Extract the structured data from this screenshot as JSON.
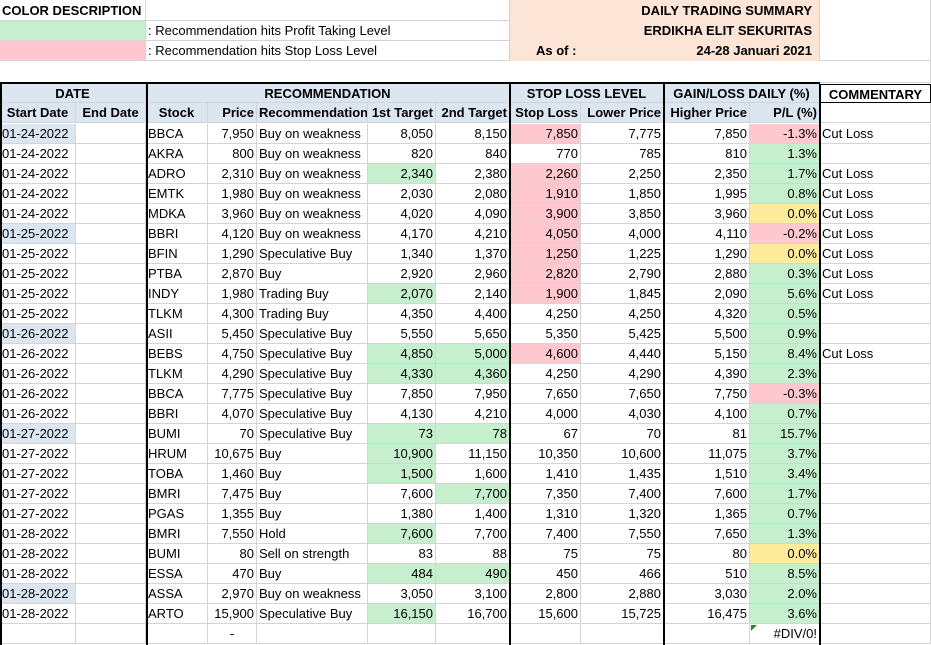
{
  "legend": {
    "title": "COLOR DESCRIPTION",
    "profit_label": ": Recommendation hits Profit Taking Level",
    "stoploss_label": ": Recommendation hits Stop Loss Level"
  },
  "summary": {
    "title": "DAILY TRADING SUMMARY",
    "company": "ERDIKHA ELIT SEKURITAS",
    "as_of_label": "As of :",
    "period": "24-28 Januari 2021"
  },
  "groups": {
    "date": "DATE",
    "recommendation": "RECOMMENDATION",
    "stop_loss": "STOP LOSS LEVEL",
    "gain_loss": "GAIN/LOSS DAILY (%)",
    "commentary": "COMMENTARY"
  },
  "columns": [
    "Start Date",
    "End Date",
    "Stock",
    "Price",
    "Recommendation",
    "1st Target",
    "2nd Target",
    "Stop Loss",
    "Lower Price",
    "Higher Price",
    "P/L (%)"
  ],
  "rows": [
    {
      "start": "01-24-2022",
      "end": "",
      "stock": "BBCA",
      "price": "7,950",
      "rec": "Buy on weakness",
      "t1": "8,050",
      "t2": "8,150",
      "sl": "7,850",
      "low": "7,775",
      "high": "7,850",
      "pl": "-1.3%",
      "comment": "Cut Loss",
      "startBg": "blue",
      "t1Bg": "",
      "t2Bg": "",
      "slBg": "red",
      "plBg": "red"
    },
    {
      "start": "01-24-2022",
      "end": "",
      "stock": "AKRA",
      "price": "800",
      "rec": "Buy on weakness",
      "t1": "820",
      "t2": "840",
      "sl": "770",
      "low": "785",
      "high": "810",
      "pl": "1.3%",
      "comment": "",
      "startBg": "",
      "t1Bg": "",
      "t2Bg": "",
      "slBg": "",
      "plBg": "green"
    },
    {
      "start": "01-24-2022",
      "end": "",
      "stock": "ADRO",
      "price": "2,310",
      "rec": "Buy on weakness",
      "t1": "2,340",
      "t2": "2,380",
      "sl": "2,260",
      "low": "2,250",
      "high": "2,350",
      "pl": "1.7%",
      "comment": "Cut Loss",
      "startBg": "",
      "t1Bg": "green",
      "t2Bg": "",
      "slBg": "red",
      "plBg": "green"
    },
    {
      "start": "01-24-2022",
      "end": "",
      "stock": "EMTK",
      "price": "1,980",
      "rec": "Buy on weakness",
      "t1": "2,030",
      "t2": "2,080",
      "sl": "1,910",
      "low": "1,850",
      "high": "1,995",
      "pl": "0.8%",
      "comment": "Cut Loss",
      "startBg": "",
      "t1Bg": "",
      "t2Bg": "",
      "slBg": "red",
      "plBg": "green"
    },
    {
      "start": "01-24-2022",
      "end": "",
      "stock": "MDKA",
      "price": "3,960",
      "rec": "Buy on weakness",
      "t1": "4,020",
      "t2": "4,090",
      "sl": "3,900",
      "low": "3,850",
      "high": "3,960",
      "pl": "0.0%",
      "comment": "Cut Loss",
      "startBg": "",
      "t1Bg": "",
      "t2Bg": "",
      "slBg": "red",
      "plBg": "yellow"
    },
    {
      "start": "01-25-2022",
      "end": "",
      "stock": "BBRI",
      "price": "4,120",
      "rec": "Buy on weakness",
      "t1": "4,170",
      "t2": "4,210",
      "sl": "4,050",
      "low": "4,000",
      "high": "4,110",
      "pl": "-0.2%",
      "comment": "Cut Loss",
      "startBg": "blue",
      "t1Bg": "",
      "t2Bg": "",
      "slBg": "red",
      "plBg": "red"
    },
    {
      "start": "01-25-2022",
      "end": "",
      "stock": "BFIN",
      "price": "1,290",
      "rec": "Speculative Buy",
      "t1": "1,340",
      "t2": "1,370",
      "sl": "1,250",
      "low": "1,225",
      "high": "1,290",
      "pl": "0.0%",
      "comment": "Cut Loss",
      "startBg": "",
      "t1Bg": "",
      "t2Bg": "",
      "slBg": "red",
      "plBg": "yellow"
    },
    {
      "start": "01-25-2022",
      "end": "",
      "stock": "PTBA",
      "price": "2,870",
      "rec": "Buy",
      "t1": "2,920",
      "t2": "2,960",
      "sl": "2,820",
      "low": "2,790",
      "high": "2,880",
      "pl": "0.3%",
      "comment": "Cut Loss",
      "startBg": "",
      "t1Bg": "",
      "t2Bg": "",
      "slBg": "red",
      "plBg": "green"
    },
    {
      "start": "01-25-2022",
      "end": "",
      "stock": "INDY",
      "price": "1,980",
      "rec": "Trading Buy",
      "t1": "2,070",
      "t2": "2,140",
      "sl": "1,900",
      "low": "1,845",
      "high": "2,090",
      "pl": "5.6%",
      "comment": "Cut Loss",
      "startBg": "",
      "t1Bg": "green",
      "t2Bg": "",
      "slBg": "red",
      "plBg": "green"
    },
    {
      "start": "01-25-2022",
      "end": "",
      "stock": "TLKM",
      "price": "4,300",
      "rec": "Trading Buy",
      "t1": "4,350",
      "t2": "4,400",
      "sl": "4,250",
      "low": "4,250",
      "high": "4,320",
      "pl": "0.5%",
      "comment": "",
      "startBg": "",
      "t1Bg": "",
      "t2Bg": "",
      "slBg": "",
      "plBg": "green"
    },
    {
      "start": "01-26-2022",
      "end": "",
      "stock": "ASII",
      "price": "5,450",
      "rec": "Speculative Buy",
      "t1": "5,550",
      "t2": "5,650",
      "sl": "5,350",
      "low": "5,425",
      "high": "5,500",
      "pl": "0.9%",
      "comment": "",
      "startBg": "blue",
      "t1Bg": "",
      "t2Bg": "",
      "slBg": "",
      "plBg": "green"
    },
    {
      "start": "01-26-2022",
      "end": "",
      "stock": "BEBS",
      "price": "4,750",
      "rec": "Speculative Buy",
      "t1": "4,850",
      "t2": "5,000",
      "sl": "4,600",
      "low": "4,440",
      "high": "5,150",
      "pl": "8.4%",
      "comment": "Cut Loss",
      "startBg": "",
      "t1Bg": "green",
      "t2Bg": "green",
      "slBg": "red",
      "plBg": "green"
    },
    {
      "start": "01-26-2022",
      "end": "",
      "stock": "TLKM",
      "price": "4,290",
      "rec": "Speculative Buy",
      "t1": "4,330",
      "t2": "4,360",
      "sl": "4,250",
      "low": "4,290",
      "high": "4,390",
      "pl": "2.3%",
      "comment": "",
      "startBg": "",
      "t1Bg": "green",
      "t2Bg": "green",
      "slBg": "",
      "plBg": "green"
    },
    {
      "start": "01-26-2022",
      "end": "",
      "stock": "BBCA",
      "price": "7,775",
      "rec": "Speculative Buy",
      "t1": "7,850",
      "t2": "7,950",
      "sl": "7,650",
      "low": "7,650",
      "high": "7,750",
      "pl": "-0.3%",
      "comment": "",
      "startBg": "",
      "t1Bg": "",
      "t2Bg": "",
      "slBg": "",
      "plBg": "red"
    },
    {
      "start": "01-26-2022",
      "end": "",
      "stock": "BBRI",
      "price": "4,070",
      "rec": "Speculative Buy",
      "t1": "4,130",
      "t2": "4,210",
      "sl": "4,000",
      "low": "4,030",
      "high": "4,100",
      "pl": "0.7%",
      "comment": "",
      "startBg": "",
      "t1Bg": "",
      "t2Bg": "",
      "slBg": "",
      "plBg": "green"
    },
    {
      "start": "01-27-2022",
      "end": "",
      "stock": "BUMI",
      "price": "70",
      "rec": "Speculative Buy",
      "t1": "73",
      "t2": "78",
      "sl": "67",
      "low": "70",
      "high": "81",
      "pl": "15.7%",
      "comment": "",
      "startBg": "blue",
      "t1Bg": "green",
      "t2Bg": "green",
      "slBg": "",
      "plBg": "green"
    },
    {
      "start": "01-27-2022",
      "end": "",
      "stock": "HRUM",
      "price": "10,675",
      "rec": "Buy",
      "t1": "10,900",
      "t2": "11,150",
      "sl": "10,350",
      "low": "10,600",
      "high": "11,075",
      "pl": "3.7%",
      "comment": "",
      "startBg": "",
      "t1Bg": "green",
      "t2Bg": "",
      "slBg": "",
      "plBg": "green"
    },
    {
      "start": "01-27-2022",
      "end": "",
      "stock": "TOBA",
      "price": "1,460",
      "rec": "Buy",
      "t1": "1,500",
      "t2": "1,600",
      "sl": "1,410",
      "low": "1,435",
      "high": "1,510",
      "pl": "3.4%",
      "comment": "",
      "startBg": "",
      "t1Bg": "green",
      "t2Bg": "",
      "slBg": "",
      "plBg": "green"
    },
    {
      "start": "01-27-2022",
      "end": "",
      "stock": "BMRI",
      "price": "7,475",
      "rec": "Buy",
      "t1": "7,600",
      "t2": "7,700",
      "sl": "7,350",
      "low": "7,400",
      "high": "7,600",
      "pl": "1.7%",
      "comment": "",
      "startBg": "",
      "t1Bg": "",
      "t2Bg": "green",
      "slBg": "",
      "plBg": "green"
    },
    {
      "start": "01-27-2022",
      "end": "",
      "stock": "PGAS",
      "price": "1,355",
      "rec": "Buy",
      "t1": "1,380",
      "t2": "1,400",
      "sl": "1,310",
      "low": "1,320",
      "high": "1,365",
      "pl": "0.7%",
      "comment": "",
      "startBg": "",
      "t1Bg": "",
      "t2Bg": "",
      "slBg": "",
      "plBg": "green"
    },
    {
      "start": "01-28-2022",
      "end": "",
      "stock": "BMRI",
      "price": "7,550",
      "rec": "Hold",
      "t1": "7,600",
      "t2": "7,700",
      "sl": "7,400",
      "low": "7,550",
      "high": "7,650",
      "pl": "1.3%",
      "comment": "",
      "startBg": "",
      "t1Bg": "green",
      "t2Bg": "",
      "slBg": "",
      "plBg": "green"
    },
    {
      "start": "01-28-2022",
      "end": "",
      "stock": "BUMI",
      "price": "80",
      "rec": "Sell on strength",
      "t1": "83",
      "t2": "88",
      "sl": "75",
      "low": "75",
      "high": "80",
      "pl": "0.0%",
      "comment": "",
      "startBg": "",
      "t1Bg": "",
      "t2Bg": "",
      "slBg": "",
      "plBg": "yellow"
    },
    {
      "start": "01-28-2022",
      "end": "",
      "stock": "ESSA",
      "price": "470",
      "rec": "Buy",
      "t1": "484",
      "t2": "490",
      "sl": "450",
      "low": "466",
      "high": "510",
      "pl": "8.5%",
      "comment": "",
      "startBg": "",
      "t1Bg": "green",
      "t2Bg": "green",
      "slBg": "",
      "plBg": "green"
    },
    {
      "start": "01-28-2022",
      "end": "",
      "stock": "ASSA",
      "price": "2,970",
      "rec": "Buy on weakness",
      "t1": "3,050",
      "t2": "3,100",
      "sl": "2,800",
      "low": "2,880",
      "high": "3,030",
      "pl": "2.0%",
      "comment": "",
      "startBg": "blue",
      "t1Bg": "",
      "t2Bg": "",
      "slBg": "",
      "plBg": "green"
    },
    {
      "start": "01-28-2022",
      "end": "",
      "stock": "ARTO",
      "price": "15,900",
      "rec": "Speculative Buy",
      "t1": "16,150",
      "t2": "16,700",
      "sl": "15,600",
      "low": "15,725",
      "high": "16,475",
      "pl": "3.6%",
      "comment": "",
      "startBg": "",
      "t1Bg": "green",
      "t2Bg": "",
      "slBg": "",
      "plBg": "green"
    }
  ],
  "footer": {
    "price": "-",
    "pl": "#DIV/0!"
  }
}
